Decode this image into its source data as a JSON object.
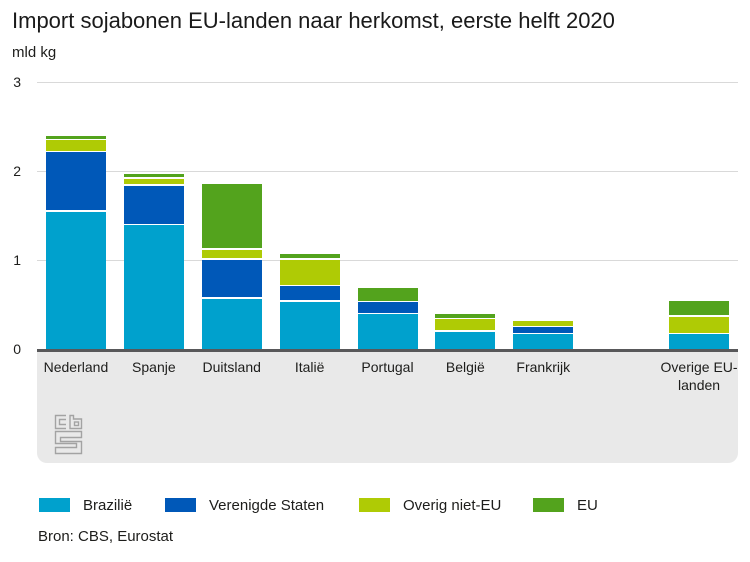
{
  "header": {
    "title": "Import sojabonen EU-landen naar herkomst, eerste helft 2020",
    "unit_label": "mld kg"
  },
  "footer": {
    "source": "Bron: CBS, Eurostat",
    "logo_name": "cbs-logo"
  },
  "colors": {
    "brazilie": "#00a1cd",
    "verenigde_staten": "#0058b8",
    "overig_niet_eu": "#afcb05",
    "eu": "#53a31d",
    "axis": "#58585a",
    "gridline": "#d9d9d9",
    "band": "#e9e9e9",
    "text": "#1d1d1b",
    "logo": "#a3a3a3"
  },
  "chart_data": {
    "type": "bar",
    "stacked": true,
    "title": "Import sojabonen EU-landen naar herkomst, eerste helft 2020",
    "ylabel": "mld kg",
    "xlabel": "",
    "ylim": [
      0,
      3
    ],
    "yticks": [
      0,
      1,
      2,
      3
    ],
    "grid": true,
    "legend_position": "bottom",
    "categories": [
      "Nederland",
      "Spanje",
      "Duitsland",
      "Italië",
      "Portugal",
      "België",
      "Frankrijk",
      "Overige EU-landen"
    ],
    "category_slots": [
      0,
      1,
      2,
      3,
      4,
      5,
      6,
      8
    ],
    "total_slots": 9,
    "series": [
      {
        "name": "Brazilië",
        "color": "#00a1cd",
        "values": [
          1.56,
          1.41,
          0.58,
          0.55,
          0.41,
          0.21,
          0.18,
          0.18
        ]
      },
      {
        "name": "Verenigde Staten",
        "color": "#0058b8",
        "values": [
          0.67,
          0.44,
          0.44,
          0.17,
          0.13,
          0.0,
          0.08,
          0.0
        ]
      },
      {
        "name": "Overig niet-EU",
        "color": "#afcb05",
        "values": [
          0.13,
          0.08,
          0.11,
          0.3,
          0.0,
          0.14,
          0.07,
          0.2
        ]
      },
      {
        "name": "EU",
        "color": "#53a31d",
        "values": [
          0.05,
          0.05,
          0.74,
          0.06,
          0.16,
          0.06,
          0.0,
          0.18
        ]
      }
    ]
  }
}
